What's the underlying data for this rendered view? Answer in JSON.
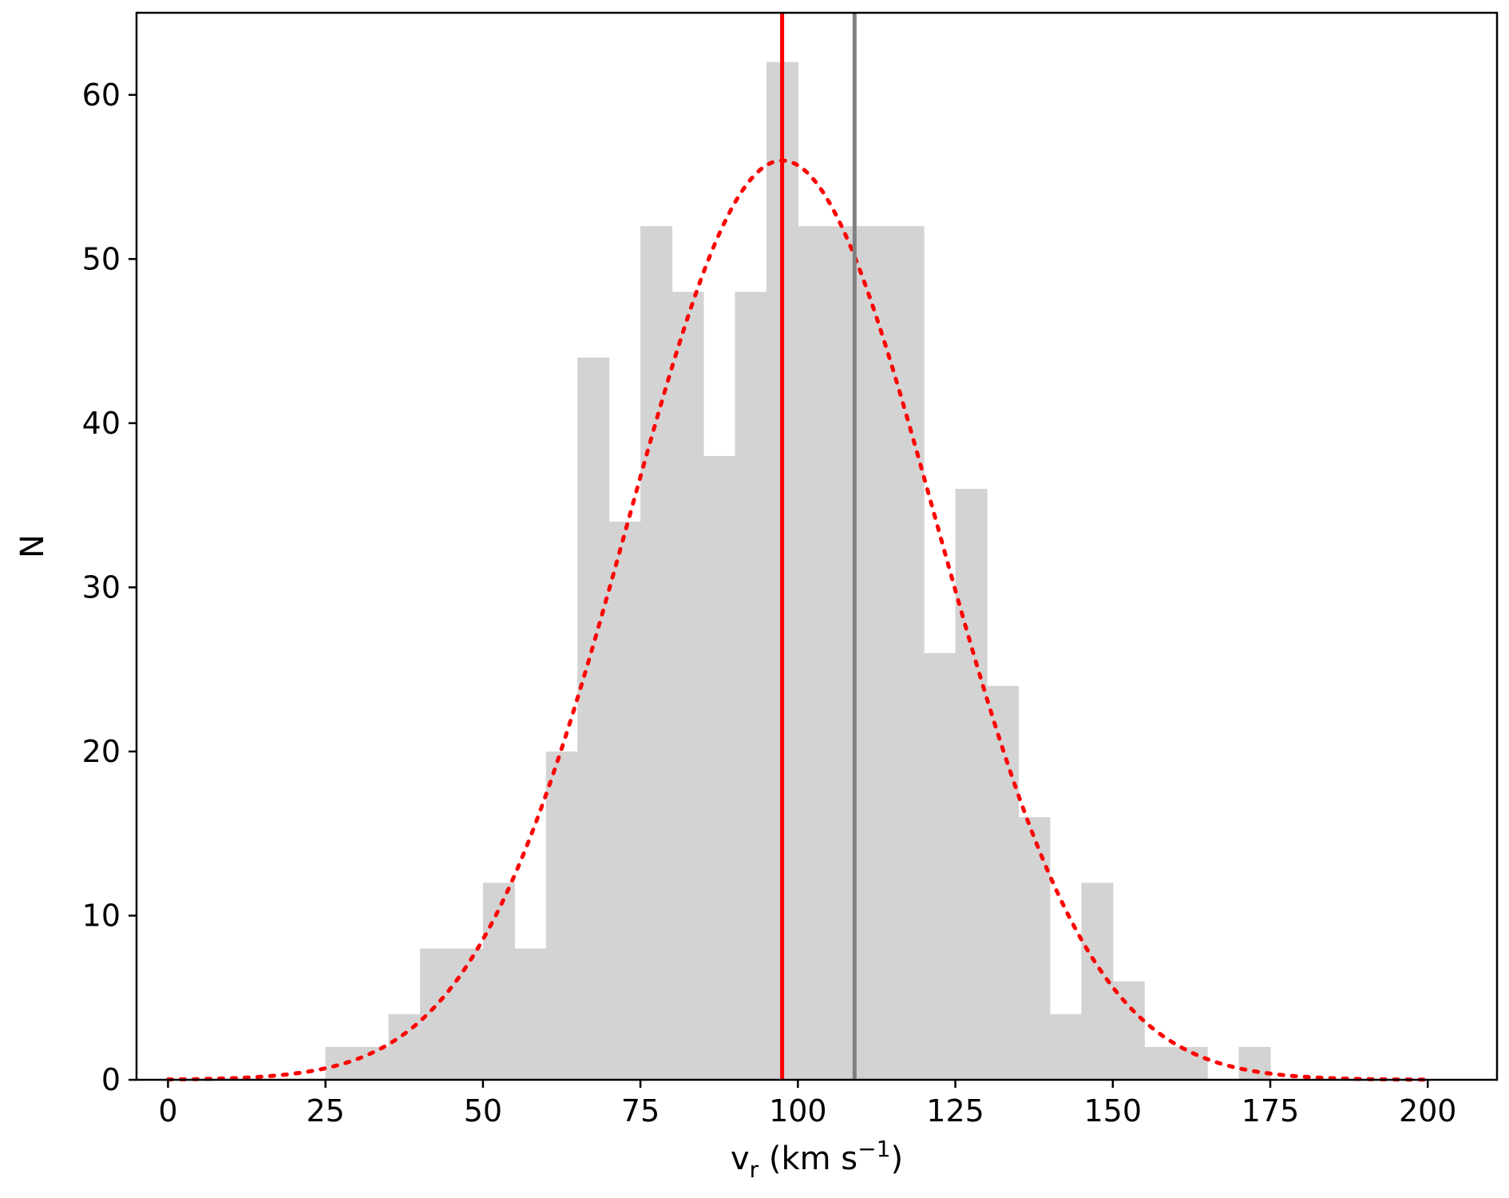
{
  "chart_data": {
    "type": "bar",
    "subtype": "histogram",
    "title": "",
    "xlabel": {
      "main": "v",
      "sub": "r",
      "mid": " (km s",
      "sup": "−1",
      "end": ")"
    },
    "ylabel": "N",
    "xlim": [
      -5,
      211
    ],
    "ylim": [
      0,
      65
    ],
    "grid": false,
    "legend": "none",
    "xticks": [
      0,
      25,
      50,
      75,
      100,
      125,
      150,
      175,
      200
    ],
    "xtick_labels": [
      "0",
      "25",
      "50",
      "75",
      "100",
      "125",
      "150",
      "175",
      "200"
    ],
    "yticks": [
      0,
      10,
      20,
      30,
      40,
      50,
      60
    ],
    "ytick_labels": [
      "0",
      "10",
      "20",
      "30",
      "40",
      "50",
      "60"
    ],
    "bin_width": 5,
    "bins": [
      {
        "x0": 25,
        "count": 2
      },
      {
        "x0": 30,
        "count": 2
      },
      {
        "x0": 35,
        "count": 4
      },
      {
        "x0": 40,
        "count": 8
      },
      {
        "x0": 45,
        "count": 8
      },
      {
        "x0": 50,
        "count": 12
      },
      {
        "x0": 55,
        "count": 8
      },
      {
        "x0": 60,
        "count": 20
      },
      {
        "x0": 65,
        "count": 44
      },
      {
        "x0": 70,
        "count": 34
      },
      {
        "x0": 75,
        "count": 52
      },
      {
        "x0": 80,
        "count": 48
      },
      {
        "x0": 85,
        "count": 38
      },
      {
        "x0": 90,
        "count": 48
      },
      {
        "x0": 95,
        "count": 62
      },
      {
        "x0": 100,
        "count": 52
      },
      {
        "x0": 105,
        "count": 52
      },
      {
        "x0": 110,
        "count": 52
      },
      {
        "x0": 115,
        "count": 52
      },
      {
        "x0": 120,
        "count": 26
      },
      {
        "x0": 125,
        "count": 36
      },
      {
        "x0": 130,
        "count": 24
      },
      {
        "x0": 135,
        "count": 16
      },
      {
        "x0": 140,
        "count": 4
      },
      {
        "x0": 145,
        "count": 12
      },
      {
        "x0": 150,
        "count": 6
      },
      {
        "x0": 155,
        "count": 2
      },
      {
        "x0": 160,
        "count": 2
      },
      {
        "x0": 165,
        "count": 0
      },
      {
        "x0": 170,
        "count": 2
      }
    ],
    "gaussian_fit": {
      "mean": 97.5,
      "sigma": 24.5,
      "amplitude": 56,
      "x_range": [
        0,
        200
      ],
      "color": "#ff0000",
      "style": "dotted"
    },
    "vlines": [
      {
        "x": 97.5,
        "color": "#ff0000"
      },
      {
        "x": 109,
        "color": "#808080"
      }
    ],
    "bar_color": "#d3d3d3"
  }
}
